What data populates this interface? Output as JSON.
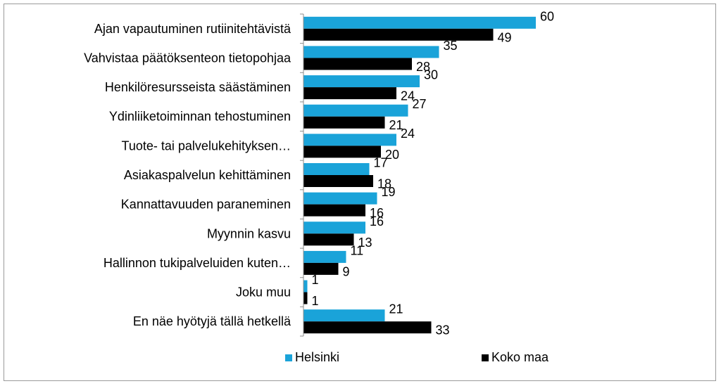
{
  "chart_data": {
    "type": "bar",
    "orientation": "horizontal",
    "categories": [
      "Ajan vapautuminen rutiinitehtävistä",
      "Vahvistaa päätöksenteon tietopohjaa",
      "Henkilöresursseista säästäminen",
      "Ydinliiketoiminnan tehostuminen",
      "Tuote- tai palvelukehityksen…",
      "Asiakaspalvelun kehittäminen",
      "Kannattavuuden paraneminen",
      "Myynnin kasvu",
      "Hallinnon tukipalveluiden kuten…",
      "Joku muu",
      "En näe hyötyjä tällä hetkellä"
    ],
    "series": [
      {
        "name": "Helsinki",
        "color": "#1aa3d9",
        "values": [
          60,
          35,
          30,
          27,
          24,
          17,
          19,
          16,
          11,
          1,
          21
        ]
      },
      {
        "name": "Koko maa",
        "color": "#000000",
        "values": [
          49,
          28,
          24,
          21,
          20,
          18,
          16,
          13,
          9,
          1,
          33
        ]
      }
    ],
    "xlim": [
      0,
      70
    ],
    "grid": false,
    "legend_position": "bottom",
    "title": "",
    "xlabel": "",
    "ylabel": ""
  }
}
